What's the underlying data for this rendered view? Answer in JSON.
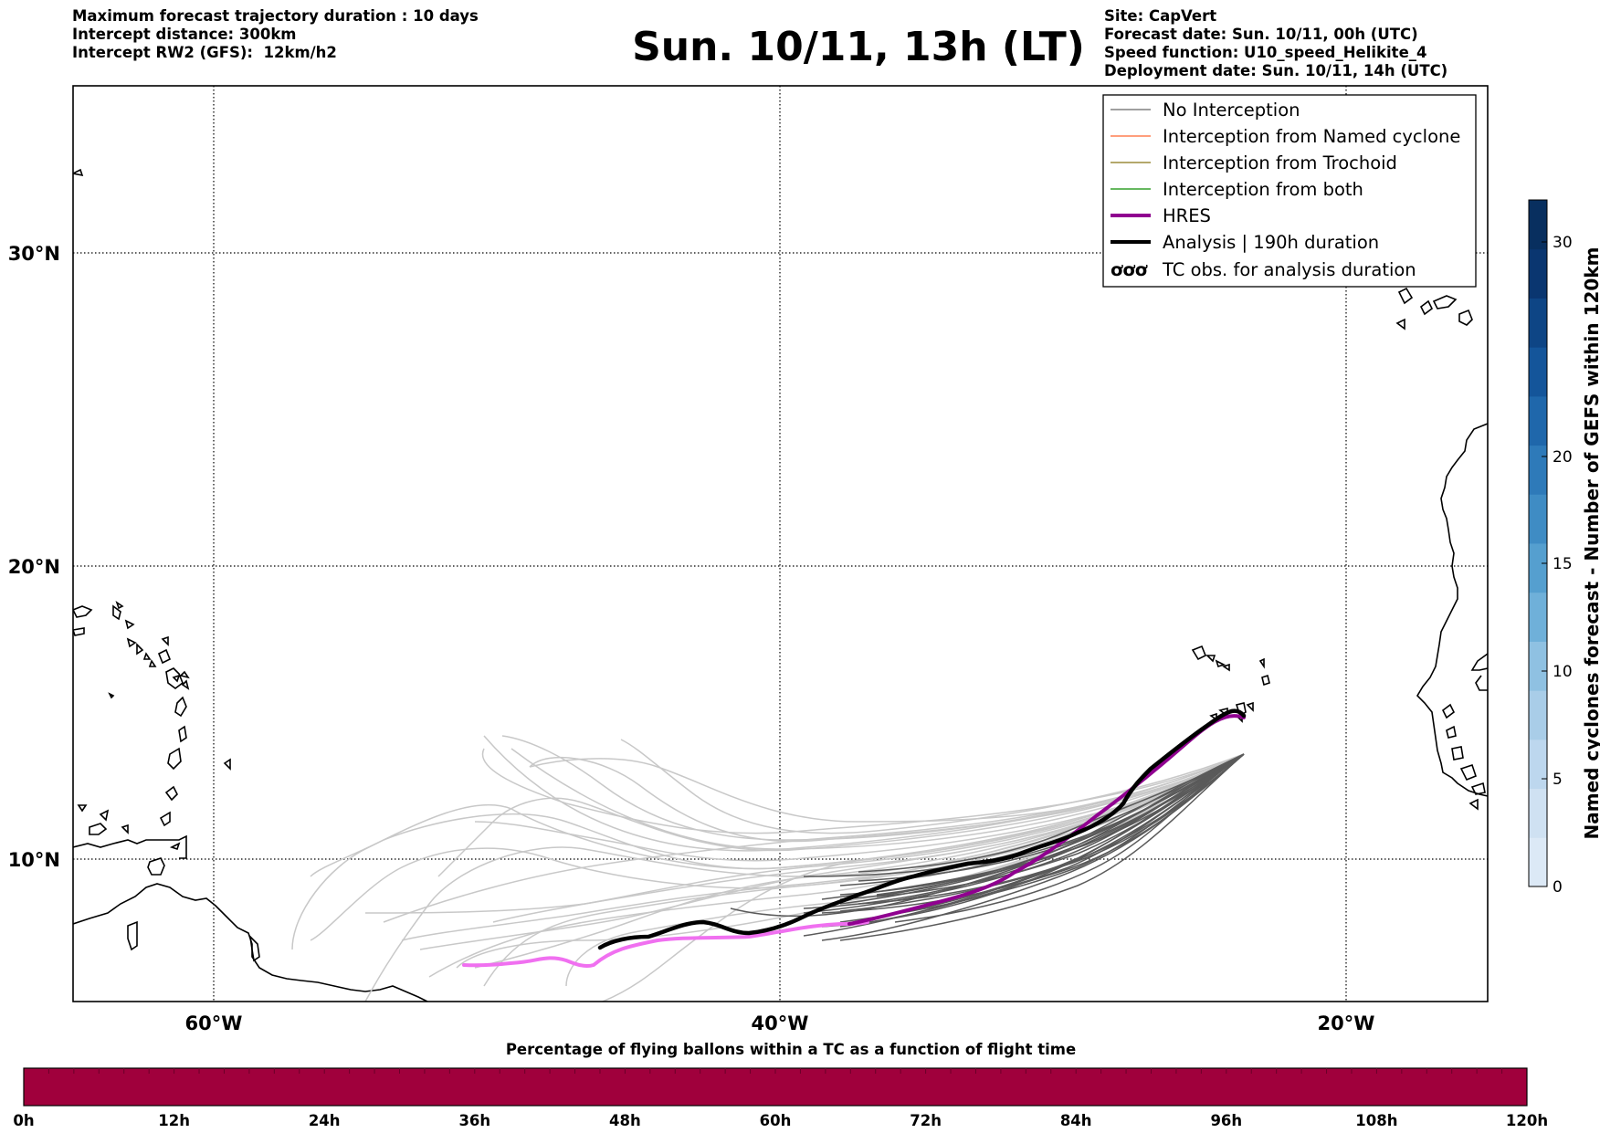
{
  "header_left": {
    "line1": "Maximum forecast trajectory duration : 10 days",
    "line2": "Intercept distance: 300km",
    "line3": "Intercept RW2 (GFS):  12km/h2"
  },
  "title": "Sun. 10/11, 13h (LT)",
  "header_right": {
    "line1": "Site: CapVert",
    "line2": "Forecast date: Sun. 10/11, 00h (UTC)",
    "line3": "Speed function: U10_speed_Helikite_4",
    "line4": "Deployment date: Sun. 10/11, 14h (UTC)"
  },
  "map": {
    "lon_labels": [
      "60°W",
      "40°W",
      "20°W"
    ],
    "lat_labels": [
      "30°N",
      "20°N",
      "10°N"
    ],
    "gridlines": true,
    "colors": {
      "no_interception": "#808080",
      "named_cyclone": "#ff7f50",
      "trochoid": "#9c8b3a",
      "both": "#33a02c",
      "hres": "#900090",
      "hres_track": "#f070f0",
      "analysis": "#000000",
      "ensemble_light": "#c8c8c8",
      "ensemble_dark": "#5a5a5a"
    }
  },
  "legend": {
    "no_interception": "No Interception",
    "named_cyclone": "Interception from Named cyclone",
    "trochoid": "Interception from Trochoid",
    "both": "Interception from both",
    "hres": "HRES",
    "analysis": "Analysis | 190h duration",
    "tc_obs": "TC obs. for analysis duration",
    "tc_symbol": "ơơơ"
  },
  "right_colorbar": {
    "label": "Named cyclones forecast - Number of GEFS within 120km",
    "ticks": [
      "0",
      "5",
      "10",
      "15",
      "20",
      "30"
    ],
    "colors": [
      "#dce9f6",
      "#cfe1f2",
      "#bdd7ee",
      "#a9cde8",
      "#8fc1e2",
      "#6fb0d9",
      "#559fcf",
      "#3f8cc4",
      "#2e7ab9",
      "#1f67ab",
      "#14559a",
      "#0e4585",
      "#0a3670",
      "#082f5f"
    ]
  },
  "bottom_colorbar": {
    "title": "Percentage of flying ballons within a TC as a function of flight time",
    "ticks": [
      "0h",
      "12h",
      "24h",
      "36h",
      "48h",
      "60h",
      "72h",
      "84h",
      "96h",
      "108h",
      "120h"
    ],
    "fill_color": "#a0003c"
  }
}
